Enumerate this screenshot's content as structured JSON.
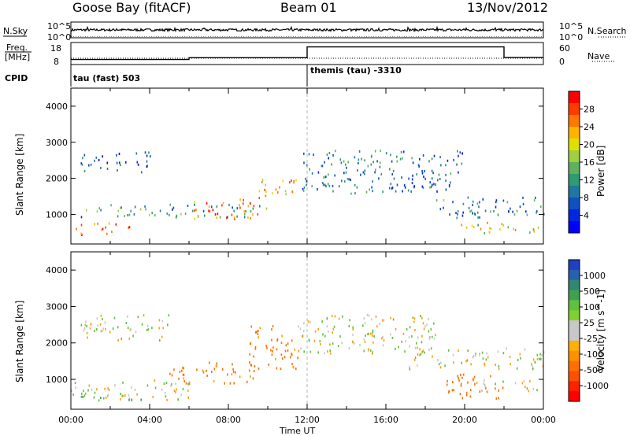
{
  "header": {
    "station": "Goose Bay (fitACF)",
    "beam": "Beam 01",
    "date": "13/Nov/2012"
  },
  "top_panels": {
    "nsky_label": "N.Sky",
    "nsky_ticks": [
      "10^5",
      "10^0"
    ],
    "nsearch_label": "N.Search",
    "nsearch_ticks": [
      "10^5",
      "10^0"
    ],
    "freq_label": "Freq.",
    "freq_unit": "[MHz]",
    "freq_ticks": [
      "18",
      "8"
    ],
    "nave_label": "Nave",
    "nave_ticks": [
      "60",
      "0"
    ],
    "cpid_label": "CPID",
    "cpid_1": "tau (fast) 503",
    "cpid_2": "themis (tau) -3310"
  },
  "panels": {
    "y_label": "Slant Range [km]",
    "y_ticks": [
      "4000",
      "3000",
      "2000",
      "1000"
    ],
    "x_ticks": [
      "00:00",
      "04:00",
      "08:00",
      "12:00",
      "16:00",
      "20:00",
      "00:00"
    ],
    "x_label": "Time UT"
  },
  "colorbars": {
    "power_label": "Power [dB]",
    "power_ticks": [
      "28",
      "24",
      "20",
      "16",
      "12",
      "8",
      "4"
    ],
    "power_colors": [
      "#ff0000",
      "#ff3c00",
      "#ff7800",
      "#ffb400",
      "#dfe000",
      "#a0d040",
      "#60b060",
      "#309a70",
      "#2078a0",
      "#1050c0",
      "#0028e0",
      "#0000ff"
    ],
    "velocity_label": "Velocity [m s^-1]",
    "velocity_ticks": [
      "1000",
      "500",
      "100",
      "25",
      "-25",
      "-100",
      "-500",
      "-1000"
    ],
    "velocity_colors": [
      "#2040c0",
      "#2860b0",
      "#308870",
      "#40a050",
      "#60c040",
      "#80d030",
      "#c8c8c8",
      "#c8c8c8",
      "#ffb000",
      "#ff9000",
      "#ff7000",
      "#ff5000",
      "#ff2000",
      "#ff0000"
    ]
  },
  "chart_data": [
    {
      "type": "line",
      "title": "N.Sky",
      "x": [
        "00:00",
        "02:00",
        "04:00",
        "06:00",
        "08:00",
        "10:00",
        "12:00",
        "14:00",
        "16:00",
        "18:00",
        "20:00",
        "22:00",
        "24:00"
      ],
      "series": [
        {
          "name": "N.Sky",
          "values": [
            1000,
            1000,
            1000,
            1000,
            1000,
            1000,
            1000,
            1000,
            1000,
            1000,
            1000,
            1000,
            1000
          ]
        },
        {
          "name": "N.Search",
          "values": [
            1,
            1,
            1,
            1,
            1,
            1,
            1,
            1,
            1,
            1,
            1,
            1,
            1
          ]
        }
      ],
      "ylim": [
        1,
        100000
      ],
      "yscale": "log"
    },
    {
      "type": "line",
      "title": "Freq.",
      "x": [
        "00:00",
        "06:00",
        "06:01",
        "12:00",
        "12:01",
        "22:00",
        "22:01",
        "24:00"
      ],
      "series": [
        {
          "name": "Freq.",
          "values": [
            10.3,
            10.3,
            11.1,
            11.1,
            16.0,
            16.0,
            11.2,
            11.2
          ]
        },
        {
          "name": "Nave",
          "values": [
            8,
            8,
            8,
            8,
            18,
            18,
            18,
            18
          ]
        }
      ],
      "ylim": [
        8,
        18
      ]
    },
    {
      "type": "heatmap",
      "title": "Power [dB]",
      "xlabel": "Time UT",
      "ylabel": "Slant Range [km]",
      "xlim": [
        "00:00",
        "24:00"
      ],
      "ylim": [
        180,
        4500
      ],
      "zlim": [
        0,
        30
      ],
      "bands": [
        {
          "t0": 0.5,
          "t1": 4.0,
          "r0": 2200,
          "r1": 2750,
          "value": 6
        },
        {
          "t0": 0.5,
          "t1": 10.0,
          "r0": 950,
          "r1": 1300,
          "value": 10
        },
        {
          "t0": 0.2,
          "t1": 3.0,
          "r0": 450,
          "r1": 800,
          "value": 26
        },
        {
          "t0": 6.0,
          "t1": 9.5,
          "r0": 900,
          "r1": 1450,
          "value": 24
        },
        {
          "t0": 9.5,
          "t1": 12.0,
          "r0": 1450,
          "r1": 2000,
          "value": 22
        },
        {
          "t0": 11.5,
          "t1": 20.0,
          "r0": 1600,
          "r1": 2800,
          "value": 8
        },
        {
          "t0": 18.5,
          "t1": 24.0,
          "r0": 900,
          "r1": 1500,
          "value": 9
        },
        {
          "t0": 19.5,
          "t1": 24.0,
          "r0": 500,
          "r1": 800,
          "value": 18
        }
      ]
    },
    {
      "type": "heatmap",
      "title": "Velocity [m s^-1]",
      "xlabel": "Time UT",
      "ylabel": "Slant Range [km]",
      "xlim": [
        "00:00",
        "24:00"
      ],
      "ylim": [
        180,
        4500
      ],
      "zlim": [
        -1000,
        1000
      ],
      "bands": [
        {
          "t0": 0.5,
          "t1": 5.0,
          "r0": 2100,
          "r1": 2800,
          "value": 0
        },
        {
          "t0": 0.0,
          "t1": 6.0,
          "r0": 450,
          "r1": 1000,
          "value": 0
        },
        {
          "t0": 0.5,
          "t1": 4.0,
          "r0": 450,
          "r1": 600,
          "value": 150
        },
        {
          "t0": 5.0,
          "t1": 9.5,
          "r0": 900,
          "r1": 1500,
          "value": -150
        },
        {
          "t0": 9.0,
          "t1": 11.5,
          "r0": 1300,
          "r1": 2500,
          "value": -150
        },
        {
          "t0": 11.5,
          "t1": 18.5,
          "r0": 1700,
          "r1": 2800,
          "value": 0
        },
        {
          "t0": 17.0,
          "t1": 24.0,
          "r0": 1300,
          "r1": 1900,
          "value": 0
        },
        {
          "t0": 19.0,
          "t1": 22.0,
          "r0": 500,
          "r1": 1200,
          "value": -250
        },
        {
          "t0": 20.5,
          "t1": 24.0,
          "r0": 700,
          "r1": 1000,
          "value": 0
        }
      ]
    }
  ]
}
